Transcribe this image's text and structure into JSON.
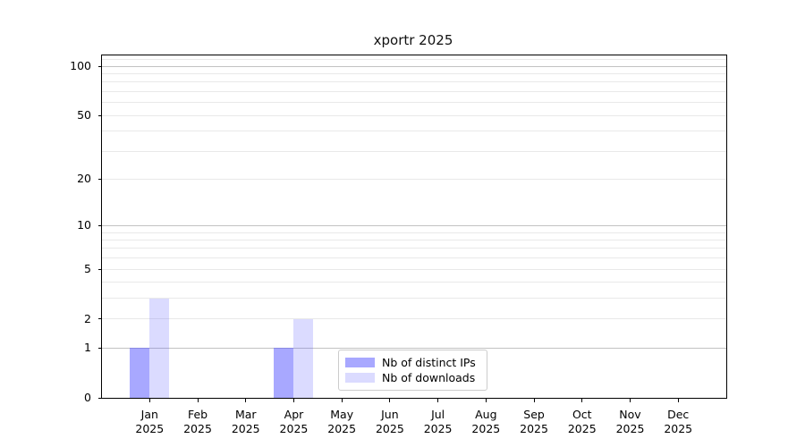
{
  "title": "xportr 2025",
  "chart_data": {
    "type": "bar",
    "title": "xportr 2025",
    "categories": [
      "Jan",
      "Feb",
      "Mar",
      "Apr",
      "May",
      "Jun",
      "Jul",
      "Aug",
      "Sep",
      "Oct",
      "Nov",
      "Dec"
    ],
    "category_year": "2025",
    "series": [
      {
        "name": "Nb of distinct IPs",
        "color": "#5555ff82",
        "values": [
          1,
          0,
          0,
          1,
          0,
          0,
          0,
          0,
          0,
          0,
          0,
          0
        ]
      },
      {
        "name": "Nb of downloads",
        "color": "#5555ff36",
        "values": [
          3,
          0,
          0,
          2,
          0,
          0,
          0,
          0,
          0,
          0,
          0,
          0
        ]
      }
    ],
    "y_axis": {
      "scale": "log10(1+x)",
      "tick_values": [
        0,
        1,
        2,
        5,
        10,
        20,
        50,
        100
      ],
      "tick_labels": [
        "0",
        "1",
        "2",
        "5",
        "10",
        "20",
        "50",
        "100"
      ],
      "major_gridlines": [
        1,
        10,
        100
      ],
      "minor_gridlines": [
        2,
        3,
        4,
        5,
        6,
        7,
        8,
        9,
        20,
        30,
        40,
        50,
        60,
        70,
        80,
        90,
        110
      ],
      "max": 115
    },
    "legend": {
      "position": "inside lower-center",
      "entries": [
        "Nb of distinct IPs",
        "Nb of downloads"
      ]
    },
    "grid": "on",
    "colors": {
      "bar_distinct_ips": "#5555ff82",
      "bar_downloads": "#5555ff36",
      "grid_major": "#c2c2c2",
      "grid_minor": "#e9e9e9",
      "spine": "#000000",
      "text": "#000000",
      "legend_border": "#cccccc"
    }
  }
}
